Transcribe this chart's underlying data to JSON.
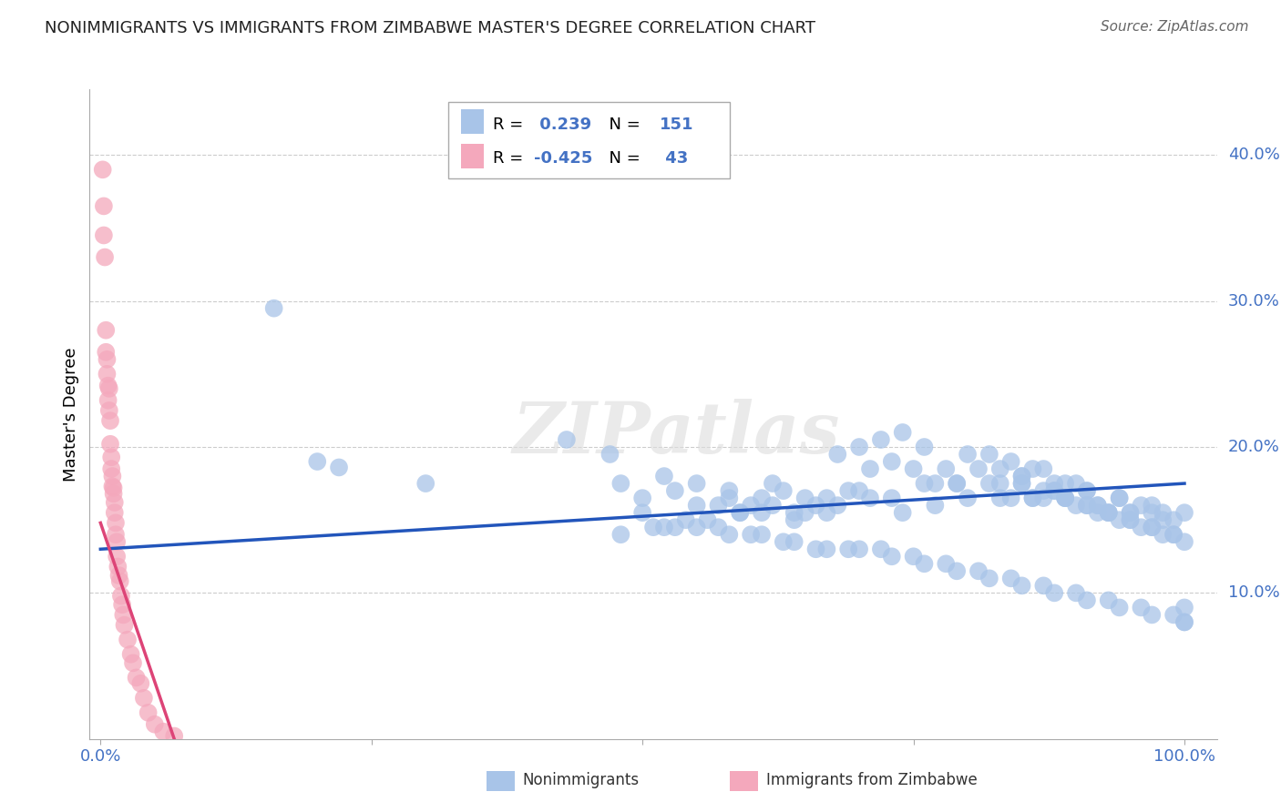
{
  "title": "NONIMMIGRANTS VS IMMIGRANTS FROM ZIMBABWE MASTER'S DEGREE CORRELATION CHART",
  "source": "Source: ZipAtlas.com",
  "ylabel": "Master's Degree",
  "right_yticks": [
    "40.0%",
    "30.0%",
    "20.0%",
    "10.0%"
  ],
  "right_ytick_vals": [
    0.4,
    0.3,
    0.2,
    0.1
  ],
  "xlim": [
    -0.01,
    1.03
  ],
  "ylim": [
    0.0,
    0.445
  ],
  "blue_R": 0.239,
  "blue_N": 151,
  "pink_R": -0.425,
  "pink_N": 43,
  "blue_color": "#a8c4e8",
  "pink_color": "#f4a8bc",
  "blue_line_color": "#2255bb",
  "pink_line_color": "#dd4477",
  "legend_blue_label": "Nonimmigrants",
  "legend_pink_label": "Immigrants from Zimbabwe",
  "watermark": "ZIPatlas",
  "blue_scatter_x": [
    0.22,
    0.43,
    0.47,
    0.48,
    0.5,
    0.52,
    0.53,
    0.55,
    0.57,
    0.58,
    0.59,
    0.6,
    0.61,
    0.62,
    0.63,
    0.64,
    0.65,
    0.66,
    0.67,
    0.68,
    0.69,
    0.7,
    0.71,
    0.72,
    0.73,
    0.74,
    0.75,
    0.76,
    0.77,
    0.78,
    0.79,
    0.8,
    0.81,
    0.82,
    0.83,
    0.84,
    0.85,
    0.86,
    0.87,
    0.88,
    0.89,
    0.9,
    0.91,
    0.92,
    0.93,
    0.94,
    0.95,
    0.96,
    0.97,
    0.98,
    0.99,
    1.0,
    0.5,
    0.55,
    0.58,
    0.61,
    0.64,
    0.67,
    0.7,
    0.73,
    0.76,
    0.79,
    0.82,
    0.85,
    0.88,
    0.91,
    0.94,
    0.97,
    1.0,
    0.53,
    0.56,
    0.59,
    0.62,
    0.65,
    0.68,
    0.71,
    0.74,
    0.77,
    0.8,
    0.83,
    0.86,
    0.89,
    0.92,
    0.95,
    0.98,
    0.48,
    0.51,
    0.54,
    0.57,
    0.6,
    0.63,
    0.66,
    0.69,
    0.72,
    0.75,
    0.78,
    0.81,
    0.84,
    0.87,
    0.9,
    0.93,
    0.96,
    0.99,
    0.52,
    0.55,
    0.58,
    0.61,
    0.64,
    0.67,
    0.7,
    0.73,
    0.76,
    0.79,
    0.82,
    0.85,
    0.88,
    0.91,
    0.94,
    0.97,
    1.0,
    0.84,
    0.86,
    0.88,
    0.9,
    0.92,
    0.94,
    0.96,
    0.98,
    1.0,
    0.85,
    0.87,
    0.89,
    0.91,
    0.93,
    0.95,
    0.97,
    0.99,
    0.83,
    0.85,
    0.87,
    0.89,
    0.91,
    0.93,
    0.95,
    0.97,
    0.99,
    1.0,
    0.3,
    0.16,
    0.2
  ],
  "blue_scatter_y": [
    0.186,
    0.205,
    0.195,
    0.175,
    0.165,
    0.18,
    0.17,
    0.175,
    0.16,
    0.17,
    0.155,
    0.16,
    0.165,
    0.175,
    0.17,
    0.155,
    0.165,
    0.16,
    0.165,
    0.195,
    0.17,
    0.2,
    0.185,
    0.205,
    0.19,
    0.21,
    0.185,
    0.2,
    0.175,
    0.185,
    0.175,
    0.195,
    0.185,
    0.195,
    0.185,
    0.19,
    0.18,
    0.185,
    0.185,
    0.175,
    0.175,
    0.175,
    0.17,
    0.16,
    0.155,
    0.165,
    0.155,
    0.16,
    0.155,
    0.155,
    0.15,
    0.08,
    0.155,
    0.16,
    0.165,
    0.155,
    0.15,
    0.155,
    0.17,
    0.165,
    0.175,
    0.175,
    0.175,
    0.18,
    0.17,
    0.17,
    0.165,
    0.16,
    0.09,
    0.145,
    0.15,
    0.155,
    0.16,
    0.155,
    0.16,
    0.165,
    0.155,
    0.16,
    0.165,
    0.165,
    0.165,
    0.165,
    0.16,
    0.155,
    0.15,
    0.14,
    0.145,
    0.15,
    0.145,
    0.14,
    0.135,
    0.13,
    0.13,
    0.13,
    0.125,
    0.12,
    0.115,
    0.11,
    0.105,
    0.1,
    0.095,
    0.09,
    0.085,
    0.145,
    0.145,
    0.14,
    0.14,
    0.135,
    0.13,
    0.13,
    0.125,
    0.12,
    0.115,
    0.11,
    0.105,
    0.1,
    0.095,
    0.09,
    0.085,
    0.08,
    0.165,
    0.165,
    0.17,
    0.16,
    0.155,
    0.15,
    0.145,
    0.14,
    0.155,
    0.175,
    0.165,
    0.165,
    0.16,
    0.155,
    0.15,
    0.145,
    0.14,
    0.175,
    0.175,
    0.17,
    0.165,
    0.16,
    0.155,
    0.15,
    0.145,
    0.14,
    0.135,
    0.175,
    0.295,
    0.19
  ],
  "pink_scatter_x": [
    0.002,
    0.003,
    0.003,
    0.004,
    0.005,
    0.005,
    0.006,
    0.006,
    0.007,
    0.007,
    0.008,
    0.008,
    0.009,
    0.009,
    0.01,
    0.01,
    0.011,
    0.011,
    0.012,
    0.012,
    0.013,
    0.013,
    0.014,
    0.014,
    0.015,
    0.015,
    0.016,
    0.017,
    0.018,
    0.019,
    0.02,
    0.021,
    0.022,
    0.025,
    0.028,
    0.03,
    0.033,
    0.037,
    0.04,
    0.044,
    0.05,
    0.058,
    0.068
  ],
  "pink_scatter_y": [
    0.39,
    0.365,
    0.345,
    0.33,
    0.28,
    0.265,
    0.26,
    0.25,
    0.242,
    0.232,
    0.24,
    0.225,
    0.218,
    0.202,
    0.193,
    0.185,
    0.18,
    0.173,
    0.172,
    0.168,
    0.162,
    0.155,
    0.148,
    0.14,
    0.135,
    0.125,
    0.118,
    0.112,
    0.108,
    0.098,
    0.092,
    0.085,
    0.078,
    0.068,
    0.058,
    0.052,
    0.042,
    0.038,
    0.028,
    0.018,
    0.01,
    0.005,
    0.002
  ],
  "blue_trend_x": [
    0.0,
    1.0
  ],
  "blue_trend_y": [
    0.13,
    0.175
  ],
  "pink_trend_x": [
    0.0,
    0.068
  ],
  "pink_trend_y": [
    0.148,
    0.0
  ],
  "grid_color": "#cccccc",
  "title_color": "#222222",
  "source_color": "#666666",
  "ytick_color": "#4472c4",
  "xtick_color": "#4472c4",
  "background_color": "#ffffff"
}
